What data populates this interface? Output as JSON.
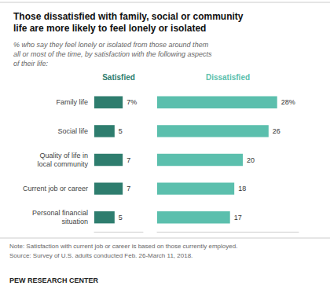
{
  "chart_data": [
    {
      "type": "bar",
      "orientation": "horizontal",
      "title": "Those dissatisfied with family, social or community\nlife are more likely to feel lonely or isolated",
      "subtitle": "% who say they feel lonely or isolated from those around them\nall or most of the time, by satisfaction with the following aspects\nof their life:",
      "categories": [
        "Family life",
        "Social life",
        "Quality of life in\nlocal community",
        "Current job or career",
        "Personal financial\nsituation"
      ],
      "series": [
        {
          "name": "Satisfied",
          "color": "#2e7d6e",
          "values": [
            7,
            5,
            7,
            7,
            5
          ],
          "value_labels": [
            "7%",
            "5",
            "7",
            "7",
            "5"
          ]
        }
      ],
      "xlim": [
        0,
        12
      ],
      "data_labels": true,
      "tick_labels": "y",
      "grid": false,
      "annotations": [
        "Note: Satisfaction with current job or career is based on those currently employed.",
        "Source: Survey of U.S. adults conducted Feb. 26-March 11, 2018.",
        "PEW RESEARCH CENTER"
      ]
    },
    {
      "type": "bar",
      "orientation": "horizontal",
      "categories": [
        null,
        null,
        null,
        null,
        null
      ],
      "series": [
        {
          "name": "Dissatisfied",
          "color": "#5bbfad",
          "values": [
            28,
            26,
            20,
            18,
            17
          ],
          "value_labels": [
            "28%",
            "26",
            "20",
            "18",
            "17"
          ]
        }
      ],
      "xlim": [
        0,
        33
      ],
      "data_labels": true,
      "tick_labels": false,
      "grid": false
    }
  ]
}
